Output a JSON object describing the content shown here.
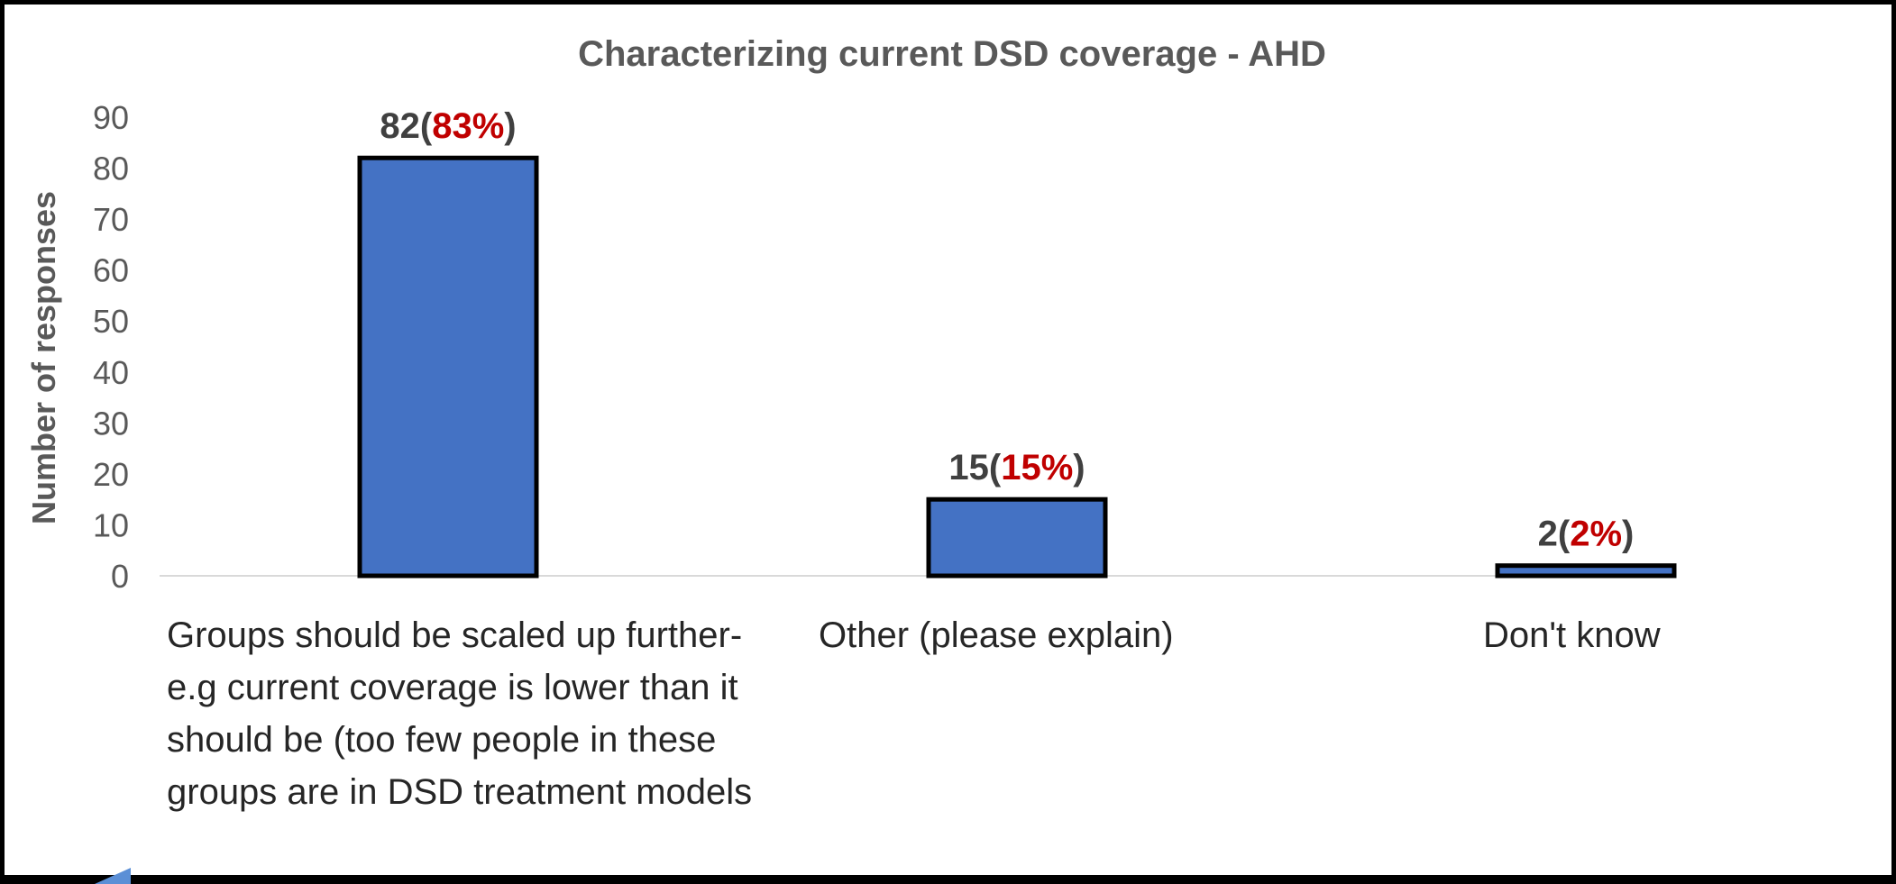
{
  "chart_data": {
    "type": "bar",
    "title": "Characterizing current DSD coverage - AHD",
    "xlabel": "",
    "ylabel": "Number of responses",
    "ylim": [
      0,
      90
    ],
    "yticks": [
      0,
      10,
      20,
      30,
      40,
      50,
      60,
      70,
      80,
      90
    ],
    "categories": [
      "Groups should be scaled up further-e.g current coverage is lower than it should be (too few people in these groups are in DSD treatment models",
      "Other (please explain)",
      "Don't know"
    ],
    "values": [
      82,
      15,
      2
    ],
    "percent_labels": [
      "83%",
      "15%",
      "2%"
    ],
    "grid": false,
    "legend": "none",
    "colors": {
      "bar_fill": "#4472c4",
      "bar_stroke": "#000000",
      "count_label": "#404040",
      "percent_label": "#c00000",
      "axis_text": "#595959",
      "baseline": "#d9d9d9"
    }
  }
}
